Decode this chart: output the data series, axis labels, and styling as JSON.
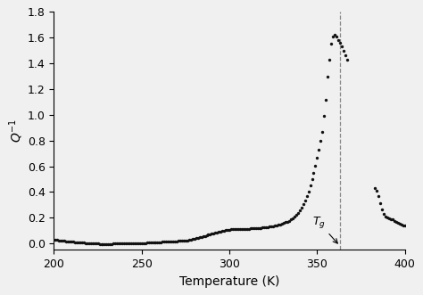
{
  "xlabel": "Temperature (K)",
  "ylabel": "$Q^{-1}$",
  "xlim": [
    200,
    400
  ],
  "ylim": [
    -0.05,
    1.8
  ],
  "yticks": [
    0.0,
    0.2,
    0.4,
    0.6,
    0.8,
    1.0,
    1.2,
    1.4,
    1.6,
    1.8
  ],
  "xticks": [
    200,
    250,
    300,
    350,
    400
  ],
  "tg_x": 363,
  "dot_color": "#111111",
  "dot_size": 6,
  "background_color": "#f0f0f0",
  "dashed_line_color": "#888888",
  "data_x": [
    200,
    201,
    202,
    203,
    204,
    205,
    206,
    207,
    208,
    209,
    210,
    211,
    212,
    213,
    214,
    215,
    216,
    217,
    218,
    219,
    220,
    221,
    222,
    223,
    224,
    225,
    226,
    227,
    228,
    229,
    230,
    231,
    232,
    233,
    234,
    235,
    236,
    237,
    238,
    239,
    240,
    241,
    242,
    243,
    244,
    245,
    246,
    247,
    248,
    249,
    250,
    251,
    252,
    253,
    254,
    255,
    256,
    257,
    258,
    259,
    260,
    261,
    262,
    263,
    264,
    265,
    266,
    267,
    268,
    269,
    270,
    271,
    272,
    273,
    274,
    275,
    276,
    277,
    278,
    279,
    280,
    281,
    282,
    283,
    284,
    285,
    286,
    287,
    288,
    289,
    290,
    291,
    292,
    293,
    294,
    295,
    296,
    297,
    298,
    299,
    300,
    301,
    302,
    303,
    304,
    305,
    306,
    307,
    308,
    309,
    310,
    311,
    312,
    313,
    314,
    315,
    316,
    317,
    318,
    319,
    320,
    321,
    322,
    323,
    324,
    325,
    326,
    327,
    328,
    329,
    330,
    331,
    332,
    333,
    334,
    335,
    336,
    337,
    338,
    339,
    340,
    341,
    342,
    343,
    344,
    345,
    346,
    347,
    348,
    349,
    350,
    351,
    352,
    353,
    354,
    355,
    356,
    357,
    358,
    359,
    360,
    361,
    362,
    363,
    364,
    365,
    366,
    367,
    383,
    384,
    385,
    386,
    387,
    388,
    389,
    390,
    391,
    392,
    393,
    394,
    395,
    396,
    397,
    398,
    399,
    400
  ],
  "data_y": [
    0.03,
    0.028,
    0.026,
    0.025,
    0.024,
    0.022,
    0.02,
    0.018,
    0.016,
    0.015,
    0.013,
    0.012,
    0.011,
    0.01,
    0.008,
    0.007,
    0.006,
    0.005,
    0.004,
    0.003,
    0.002,
    0.001,
    0.0,
    -0.001,
    -0.002,
    -0.002,
    -0.003,
    -0.003,
    -0.003,
    -0.003,
    -0.003,
    -0.003,
    -0.003,
    -0.003,
    -0.002,
    -0.002,
    -0.002,
    -0.001,
    -0.001,
    0.0,
    0.0,
    0.001,
    0.001,
    0.001,
    0.001,
    0.002,
    0.002,
    0.002,
    0.003,
    0.003,
    0.003,
    0.004,
    0.004,
    0.005,
    0.005,
    0.006,
    0.006,
    0.007,
    0.008,
    0.009,
    0.01,
    0.011,
    0.012,
    0.013,
    0.013,
    0.014,
    0.015,
    0.015,
    0.016,
    0.017,
    0.018,
    0.019,
    0.02,
    0.021,
    0.022,
    0.023,
    0.025,
    0.027,
    0.03,
    0.033,
    0.036,
    0.04,
    0.044,
    0.048,
    0.052,
    0.056,
    0.06,
    0.064,
    0.068,
    0.072,
    0.076,
    0.08,
    0.083,
    0.086,
    0.09,
    0.093,
    0.096,
    0.099,
    0.102,
    0.105,
    0.108,
    0.109,
    0.11,
    0.11,
    0.111,
    0.111,
    0.112,
    0.112,
    0.113,
    0.113,
    0.114,
    0.115,
    0.116,
    0.117,
    0.118,
    0.119,
    0.12,
    0.121,
    0.122,
    0.123,
    0.124,
    0.126,
    0.128,
    0.13,
    0.132,
    0.135,
    0.138,
    0.141,
    0.144,
    0.148,
    0.153,
    0.158,
    0.164,
    0.17,
    0.177,
    0.186,
    0.196,
    0.208,
    0.222,
    0.238,
    0.256,
    0.278,
    0.304,
    0.334,
    0.368,
    0.406,
    0.45,
    0.498,
    0.55,
    0.607,
    0.667,
    0.73,
    0.8,
    0.87,
    0.99,
    1.115,
    1.3,
    1.43,
    1.55,
    1.61,
    1.62,
    1.61,
    1.58,
    1.56,
    1.53,
    1.5,
    1.46,
    1.43,
    0.43,
    0.41,
    0.37,
    0.31,
    0.265,
    0.23,
    0.21,
    0.2,
    0.195,
    0.19,
    0.185,
    0.175,
    0.165,
    0.158,
    0.152,
    0.147,
    0.143,
    0.14
  ]
}
